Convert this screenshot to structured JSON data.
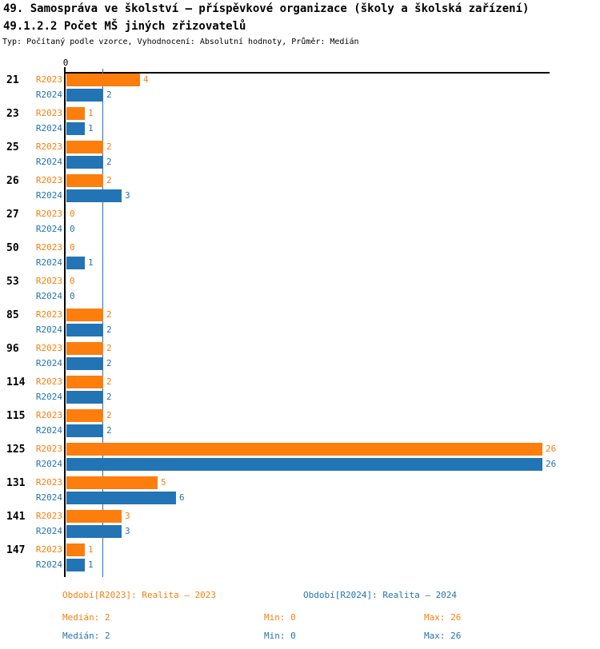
{
  "header": {
    "title": "49. Samospráva ve školství – příspěvkové organizace (školy a školská zařízení)",
    "subtitle": "49.1.2.2 Počet MŠ jiných zřizovatelů",
    "meta": "Typ: Počítaný podle vzorce, Vyhodnocení: Absolutní hodnoty, Průměr: Medián"
  },
  "chart_data": {
    "type": "bar",
    "orientation": "horizontal",
    "title": "49.1.2.2 Počet MŠ jiných zřizovatelů",
    "x_axis": {
      "zero_label": "0",
      "min": 0,
      "max": 26,
      "grid": false
    },
    "categories": [
      "21",
      "23",
      "25",
      "26",
      "27",
      "50",
      "53",
      "85",
      "96",
      "114",
      "115",
      "125",
      "131",
      "141",
      "147"
    ],
    "series": [
      {
        "name": "R2023",
        "color": "#FD7E0D",
        "values": [
          4,
          1,
          2,
          2,
          0,
          0,
          0,
          2,
          2,
          2,
          2,
          26,
          5,
          3,
          1
        ],
        "median": 2
      },
      {
        "name": "R2024",
        "color": "#2274B5",
        "values": [
          2,
          1,
          2,
          3,
          0,
          1,
          0,
          2,
          2,
          2,
          2,
          26,
          6,
          3,
          1
        ],
        "median": 2
      }
    ],
    "median_lines": [
      {
        "series": "R2023",
        "value": 2,
        "color": "#FD7E0D"
      },
      {
        "series": "R2024",
        "value": 2,
        "color": "#2274B5"
      }
    ]
  },
  "footer": {
    "legend": [
      {
        "label": "Období[R2023]: Realita – 2023",
        "color": "#FD7E0D"
      },
      {
        "label": "Období[R2024]: Realita – 2024",
        "color": "#2274B5"
      }
    ],
    "stats": [
      {
        "median": "Medián: 2",
        "min": "Min: 0",
        "max": "Max: 26",
        "color": "#FD7E0D"
      },
      {
        "median": "Medián: 2",
        "min": "Min: 0",
        "max": "Max: 26",
        "color": "#2274B5"
      }
    ]
  }
}
